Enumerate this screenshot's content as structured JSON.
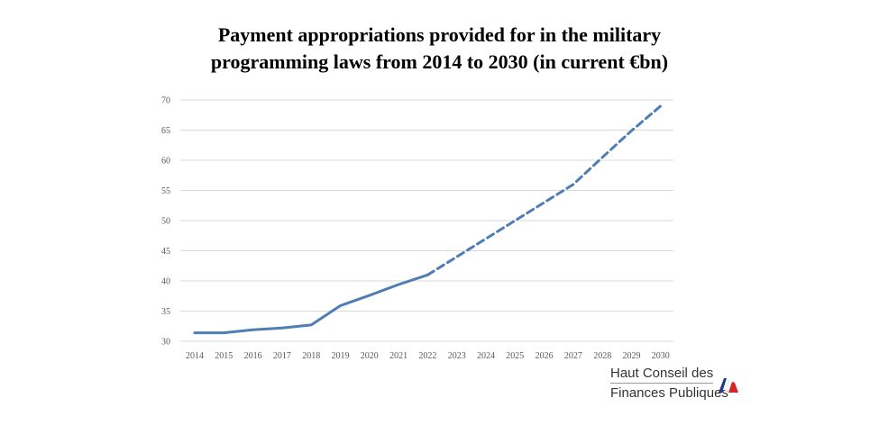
{
  "title_lines": [
    "Payment appropriations provided for in the military",
    "programming laws from 2014 to 2030 (in current €bn)"
  ],
  "logo": {
    "line1": "Haut Conseil des",
    "line2": "Finances Publiques"
  },
  "colors": {
    "line": "#4f7db4",
    "grid": "#d9d9d9",
    "flag_blue": "#1f3b8c",
    "flag_red": "#d6262b"
  },
  "chart_data": {
    "type": "line",
    "title": "Payment appropriations provided for in the military programming laws from 2014 to 2030 (in current €bn)",
    "xlabel": "",
    "ylabel": "",
    "categories": [
      "2014",
      "2015",
      "2016",
      "2017",
      "2018",
      "2019",
      "2020",
      "2021",
      "2022",
      "2023",
      "2024",
      "2025",
      "2026",
      "2027",
      "2028",
      "2029",
      "2030"
    ],
    "series": [
      {
        "style": "solid",
        "values": [
          31.4,
          31.4,
          31.9,
          32.2,
          32.7,
          35.9,
          37.6,
          39.4,
          41.0,
          null,
          null,
          null,
          null,
          null,
          null,
          null,
          null
        ]
      },
      {
        "style": "dashed",
        "values": [
          null,
          null,
          null,
          null,
          null,
          null,
          null,
          null,
          41.0,
          44.0,
          47.0,
          50.0,
          53.0,
          56.0,
          60.5,
          64.9,
          69.0
        ]
      }
    ],
    "ylim": [
      30,
      70
    ],
    "yticks": [
      30,
      35,
      40,
      45,
      50,
      55,
      60,
      65,
      70
    ],
    "grid": true,
    "legend": "none"
  }
}
